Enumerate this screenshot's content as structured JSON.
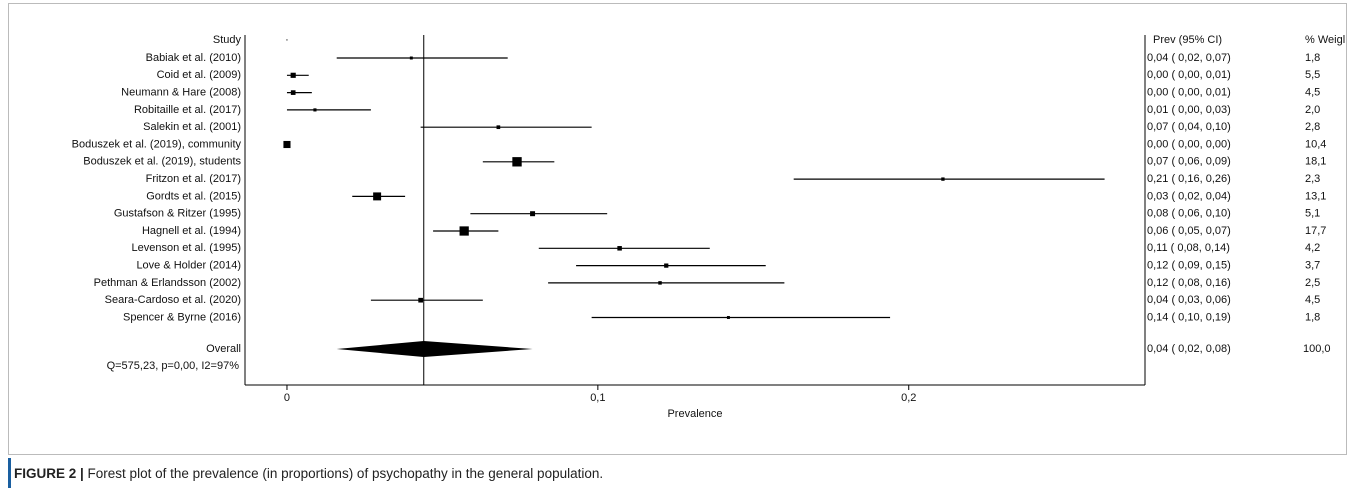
{
  "chart_data": {
    "type": "forest",
    "column_headers": [
      "Study",
      "Prev (95% CI)",
      "% Weigl"
    ],
    "categories": [
      "Babiak et al. (2010)",
      "Coid et al. (2009)",
      "Neumann & Hare (2008)",
      "Robitaille et al. (2017)",
      "Salekin et al. (2001)",
      "Boduszek et al. (2019), community",
      "Boduszek et al. (2019), students",
      "Fritzon et al. (2017)",
      "Gordts et al. (2015)",
      "Gustafson & Ritzer (1995)",
      "Hagnell et al. (1994)",
      "Levenson et al. (1995)",
      "Love & Holder (2014)",
      "Pethman & Erlandsson (2002)",
      "Seara-Cardoso et al. (2020)",
      "Spencer & Byrne (2016)"
    ],
    "values": [
      0.04,
      0.002,
      0.002,
      0.009,
      0.068,
      0.0,
      0.074,
      0.211,
      0.029,
      0.079,
      0.057,
      0.107,
      0.122,
      0.12,
      0.043,
      0.142
    ],
    "lower": [
      0.016,
      0.0,
      0.0,
      0.0,
      0.043,
      0.0,
      0.063,
      0.163,
      0.021,
      0.059,
      0.047,
      0.081,
      0.093,
      0.084,
      0.027,
      0.098
    ],
    "upper": [
      0.071,
      0.007,
      0.008,
      0.027,
      0.098,
      0.001,
      0.086,
      0.263,
      0.038,
      0.103,
      0.068,
      0.136,
      0.154,
      0.16,
      0.063,
      0.194
    ],
    "value_labels": [
      "0,04 ( 0,02, 0,07)",
      "0,00 ( 0,00, 0,01)",
      "0,00 ( 0,00, 0,01)",
      "0,01 ( 0,00, 0,03)",
      "0,07 ( 0,04, 0,10)",
      "0,00 ( 0,00, 0,00)",
      "0,07 ( 0,06, 0,09)",
      "0,21 ( 0,16, 0,26)",
      "0,03 ( 0,02, 0,04)",
      "0,08 ( 0,06, 0,10)",
      "0,06 ( 0,05, 0,07)",
      "0,11 ( 0,08, 0,14)",
      "0,12 ( 0,09, 0,15)",
      "0,12 ( 0,08, 0,16)",
      "0,04 ( 0,03, 0,06)",
      "0,14 ( 0,10, 0,19)"
    ],
    "weights": [
      1.8,
      5.5,
      4.5,
      2.0,
      2.8,
      10.4,
      18.1,
      2.3,
      13.1,
      5.1,
      17.7,
      4.2,
      3.7,
      2.5,
      4.5,
      1.8
    ],
    "weight_labels": [
      "1,8",
      "5,5",
      "4,5",
      "2,0",
      "2,8",
      "10,4",
      "18,1",
      "2,3",
      "13,1",
      "5,1",
      "17,7",
      "4,2",
      "3,7",
      "2,5",
      "4,5",
      "1,8"
    ],
    "overall": {
      "label": "Overall",
      "value": 0.044,
      "lower": 0.016,
      "upper": 0.079,
      "value_label": "0,04 ( 0,02, 0,08)",
      "weight": 100,
      "weight_label": "100,0"
    },
    "heterogeneity": "Q=575,23, p=0,00, I2=97%",
    "xlabel": "Prevalence",
    "xlim": [
      -0.0135,
      0.276
    ],
    "xticks": [
      0,
      {
        "value": 0.1,
        "label": "0,1"
      },
      {
        "value": 0.2,
        "label": "0,2"
      }
    ],
    "color": "#000000"
  },
  "caption": {
    "label": "FIGURE 2 |",
    "text": " Forest plot of the prevalence (in proportions) of psychopathy in the general population."
  }
}
